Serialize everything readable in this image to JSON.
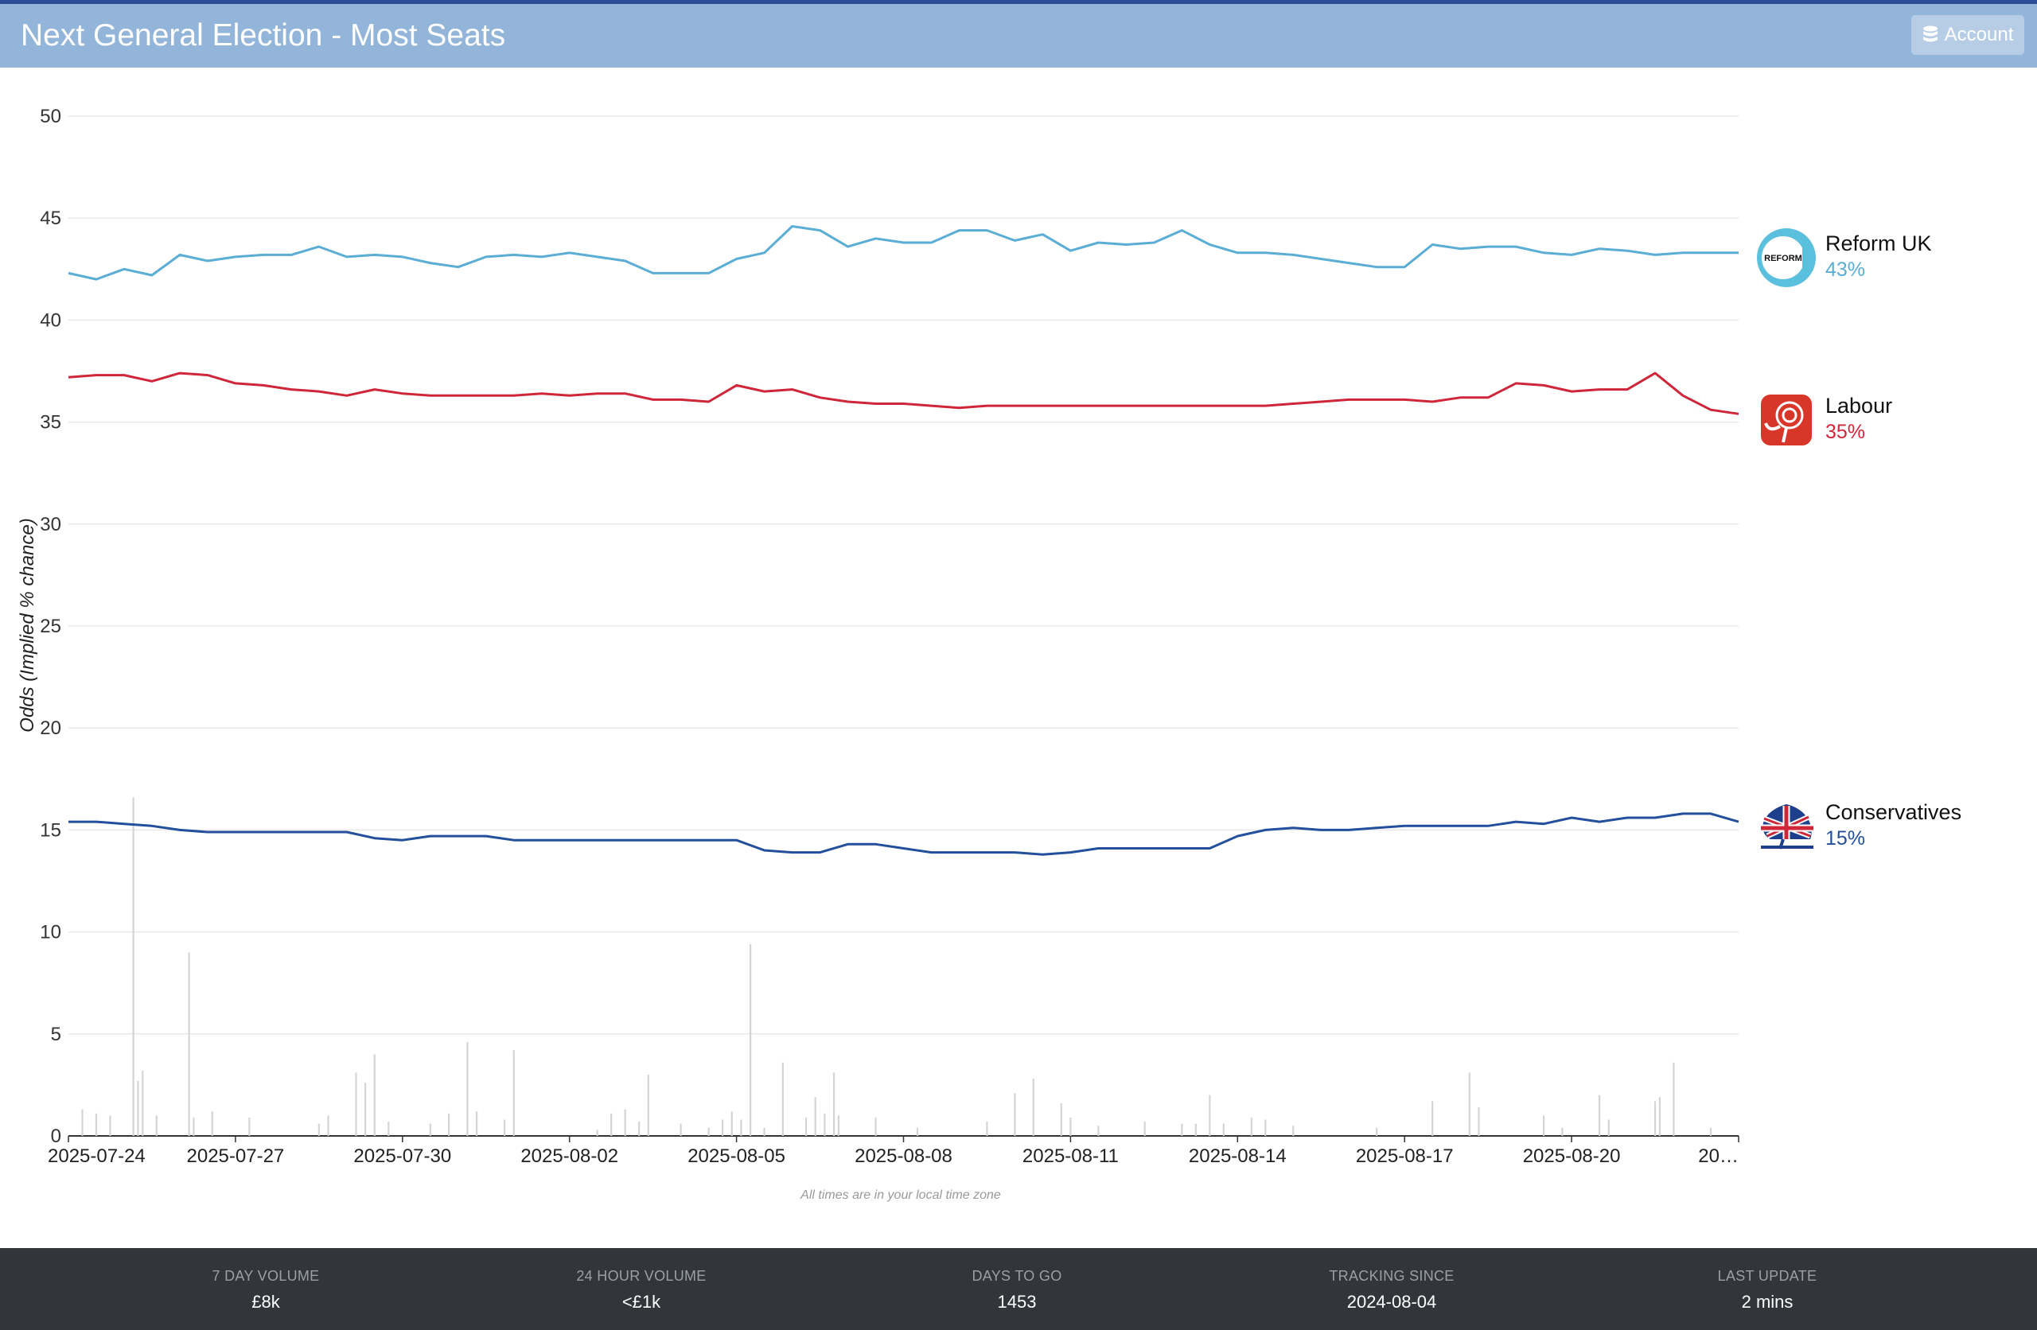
{
  "header": {
    "title": "Next General Election - Most Seats",
    "account_label": "Account",
    "account_icon": "database-icon"
  },
  "colors": {
    "header_bg": "#94b5da",
    "top_strip": "#2c4d99",
    "reform": "#5aadd5",
    "labour": "#d0263a",
    "conservatives": "#234f9c",
    "volume_bars": "#d4d4d4",
    "footer_bg": "#32353a"
  },
  "chart_data": {
    "type": "line",
    "ylabel": "Odds (Implied % chance)",
    "ylim": [
      0,
      50
    ],
    "yticks": [
      0,
      5,
      10,
      15,
      20,
      25,
      30,
      35,
      40,
      45,
      50
    ],
    "xlim": [
      "2025-07-24",
      "2025-08-23"
    ],
    "xtick_labels": [
      "2025-07-24",
      "2025-07-27",
      "2025-07-30",
      "2025-08-02",
      "2025-08-05",
      "2025-08-08",
      "2025-08-11",
      "2025-08-14",
      "2025-08-17",
      "2025-08-20",
      "20…"
    ],
    "grid": true,
    "note": "All times are in your local time zone",
    "series": [
      {
        "name": "Reform UK",
        "color": "#5aadd5",
        "current_label": "43%",
        "logo": "reform-uk-logo",
        "points": [
          [
            "2025-07-24",
            42.3
          ],
          [
            "2025-07-24 12:00",
            42.0
          ],
          [
            "2025-07-25",
            42.5
          ],
          [
            "2025-07-25 12:00",
            42.2
          ],
          [
            "2025-07-26",
            43.2
          ],
          [
            "2025-07-26 12:00",
            42.9
          ],
          [
            "2025-07-27",
            43.1
          ],
          [
            "2025-07-27 12:00",
            43.2
          ],
          [
            "2025-07-28",
            43.2
          ],
          [
            "2025-07-28 12:00",
            43.6
          ],
          [
            "2025-07-29",
            43.1
          ],
          [
            "2025-07-29 12:00",
            43.2
          ],
          [
            "2025-07-30",
            43.1
          ],
          [
            "2025-07-30 12:00",
            42.8
          ],
          [
            "2025-07-31",
            42.6
          ],
          [
            "2025-07-31 12:00",
            43.1
          ],
          [
            "2025-08-01",
            43.2
          ],
          [
            "2025-08-01 12:00",
            43.1
          ],
          [
            "2025-08-02",
            43.3
          ],
          [
            "2025-08-02 12:00",
            43.1
          ],
          [
            "2025-08-03",
            42.9
          ],
          [
            "2025-08-03 12:00",
            42.3
          ],
          [
            "2025-08-04",
            42.3
          ],
          [
            "2025-08-04 12:00",
            42.3
          ],
          [
            "2025-08-05",
            43.0
          ],
          [
            "2025-08-05 12:00",
            43.3
          ],
          [
            "2025-08-06",
            44.6
          ],
          [
            "2025-08-06 12:00",
            44.4
          ],
          [
            "2025-08-07",
            43.6
          ],
          [
            "2025-08-07 12:00",
            44.0
          ],
          [
            "2025-08-08",
            43.8
          ],
          [
            "2025-08-08 12:00",
            43.8
          ],
          [
            "2025-08-09",
            44.4
          ],
          [
            "2025-08-09 12:00",
            44.4
          ],
          [
            "2025-08-10",
            43.9
          ],
          [
            "2025-08-10 12:00",
            44.2
          ],
          [
            "2025-08-11",
            43.4
          ],
          [
            "2025-08-11 12:00",
            43.8
          ],
          [
            "2025-08-12",
            43.7
          ],
          [
            "2025-08-12 12:00",
            43.8
          ],
          [
            "2025-08-13",
            44.4
          ],
          [
            "2025-08-13 12:00",
            43.7
          ],
          [
            "2025-08-14",
            43.3
          ],
          [
            "2025-08-14 12:00",
            43.3
          ],
          [
            "2025-08-15",
            43.2
          ],
          [
            "2025-08-15 12:00",
            43.0
          ],
          [
            "2025-08-16",
            42.8
          ],
          [
            "2025-08-16 12:00",
            42.6
          ],
          [
            "2025-08-17",
            42.6
          ],
          [
            "2025-08-17 12:00",
            43.7
          ],
          [
            "2025-08-18",
            43.5
          ],
          [
            "2025-08-18 12:00",
            43.6
          ],
          [
            "2025-08-19",
            43.6
          ],
          [
            "2025-08-19 12:00",
            43.3
          ],
          [
            "2025-08-20",
            43.2
          ],
          [
            "2025-08-20 12:00",
            43.5
          ],
          [
            "2025-08-21",
            43.4
          ],
          [
            "2025-08-21 12:00",
            43.2
          ],
          [
            "2025-08-22",
            43.3
          ],
          [
            "2025-08-22 12:00",
            43.3
          ],
          [
            "2025-08-23",
            43.3
          ]
        ]
      },
      {
        "name": "Labour",
        "color": "#d0263a",
        "current_label": "35%",
        "logo": "labour-rose-logo",
        "points": [
          [
            "2025-07-24",
            37.2
          ],
          [
            "2025-07-24 12:00",
            37.3
          ],
          [
            "2025-07-25",
            37.3
          ],
          [
            "2025-07-25 12:00",
            37.0
          ],
          [
            "2025-07-26",
            37.4
          ],
          [
            "2025-07-26 12:00",
            37.3
          ],
          [
            "2025-07-27",
            36.9
          ],
          [
            "2025-07-27 12:00",
            36.8
          ],
          [
            "2025-07-28",
            36.6
          ],
          [
            "2025-07-28 12:00",
            36.5
          ],
          [
            "2025-07-29",
            36.3
          ],
          [
            "2025-07-29 12:00",
            36.6
          ],
          [
            "2025-07-30",
            36.4
          ],
          [
            "2025-07-30 12:00",
            36.3
          ],
          [
            "2025-07-31",
            36.3
          ],
          [
            "2025-07-31 12:00",
            36.3
          ],
          [
            "2025-08-01",
            36.3
          ],
          [
            "2025-08-01 12:00",
            36.4
          ],
          [
            "2025-08-02",
            36.3
          ],
          [
            "2025-08-02 12:00",
            36.4
          ],
          [
            "2025-08-03",
            36.4
          ],
          [
            "2025-08-03 12:00",
            36.1
          ],
          [
            "2025-08-04",
            36.1
          ],
          [
            "2025-08-04 12:00",
            36.0
          ],
          [
            "2025-08-05",
            36.8
          ],
          [
            "2025-08-05 12:00",
            36.5
          ],
          [
            "2025-08-06",
            36.6
          ],
          [
            "2025-08-06 12:00",
            36.2
          ],
          [
            "2025-08-07",
            36.0
          ],
          [
            "2025-08-07 12:00",
            35.9
          ],
          [
            "2025-08-08",
            35.9
          ],
          [
            "2025-08-08 12:00",
            35.8
          ],
          [
            "2025-08-09",
            35.7
          ],
          [
            "2025-08-09 12:00",
            35.8
          ],
          [
            "2025-08-10",
            35.8
          ],
          [
            "2025-08-10 12:00",
            35.8
          ],
          [
            "2025-08-11",
            35.8
          ],
          [
            "2025-08-11 12:00",
            35.8
          ],
          [
            "2025-08-12",
            35.8
          ],
          [
            "2025-08-12 12:00",
            35.8
          ],
          [
            "2025-08-13",
            35.8
          ],
          [
            "2025-08-13 12:00",
            35.8
          ],
          [
            "2025-08-14",
            35.8
          ],
          [
            "2025-08-14 12:00",
            35.8
          ],
          [
            "2025-08-15",
            35.9
          ],
          [
            "2025-08-15 12:00",
            36.0
          ],
          [
            "2025-08-16",
            36.1
          ],
          [
            "2025-08-16 12:00",
            36.1
          ],
          [
            "2025-08-17",
            36.1
          ],
          [
            "2025-08-17 12:00",
            36.0
          ],
          [
            "2025-08-18",
            36.2
          ],
          [
            "2025-08-18 12:00",
            36.2
          ],
          [
            "2025-08-19",
            36.9
          ],
          [
            "2025-08-19 12:00",
            36.8
          ],
          [
            "2025-08-20",
            36.5
          ],
          [
            "2025-08-20 12:00",
            36.6
          ],
          [
            "2025-08-21",
            36.6
          ],
          [
            "2025-08-21 12:00",
            37.4
          ],
          [
            "2025-08-22",
            36.3
          ],
          [
            "2025-08-22 12:00",
            35.6
          ],
          [
            "2025-08-23",
            35.4
          ]
        ]
      },
      {
        "name": "Conservatives",
        "color": "#234f9c",
        "current_label": "15%",
        "logo": "conservatives-tree-logo",
        "points": [
          [
            "2025-07-24",
            15.4
          ],
          [
            "2025-07-24 12:00",
            15.4
          ],
          [
            "2025-07-25",
            15.3
          ],
          [
            "2025-07-25 12:00",
            15.2
          ],
          [
            "2025-07-26",
            15.0
          ],
          [
            "2025-07-26 12:00",
            14.9
          ],
          [
            "2025-07-27",
            14.9
          ],
          [
            "2025-07-27 12:00",
            14.9
          ],
          [
            "2025-07-28",
            14.9
          ],
          [
            "2025-07-28 12:00",
            14.9
          ],
          [
            "2025-07-29",
            14.9
          ],
          [
            "2025-07-29 12:00",
            14.6
          ],
          [
            "2025-07-30",
            14.5
          ],
          [
            "2025-07-30 12:00",
            14.7
          ],
          [
            "2025-07-31",
            14.7
          ],
          [
            "2025-07-31 12:00",
            14.7
          ],
          [
            "2025-08-01",
            14.5
          ],
          [
            "2025-08-01 12:00",
            14.5
          ],
          [
            "2025-08-02",
            14.5
          ],
          [
            "2025-08-02 12:00",
            14.5
          ],
          [
            "2025-08-03",
            14.5
          ],
          [
            "2025-08-03 12:00",
            14.5
          ],
          [
            "2025-08-04",
            14.5
          ],
          [
            "2025-08-04 12:00",
            14.5
          ],
          [
            "2025-08-05",
            14.5
          ],
          [
            "2025-08-05 12:00",
            14.0
          ],
          [
            "2025-08-06",
            13.9
          ],
          [
            "2025-08-06 12:00",
            13.9
          ],
          [
            "2025-08-07",
            14.3
          ],
          [
            "2025-08-07 12:00",
            14.3
          ],
          [
            "2025-08-08",
            14.1
          ],
          [
            "2025-08-08 12:00",
            13.9
          ],
          [
            "2025-08-09",
            13.9
          ],
          [
            "2025-08-09 12:00",
            13.9
          ],
          [
            "2025-08-10",
            13.9
          ],
          [
            "2025-08-10 12:00",
            13.8
          ],
          [
            "2025-08-11",
            13.9
          ],
          [
            "2025-08-11 12:00",
            14.1
          ],
          [
            "2025-08-12",
            14.1
          ],
          [
            "2025-08-12 12:00",
            14.1
          ],
          [
            "2025-08-13",
            14.1
          ],
          [
            "2025-08-13 12:00",
            14.1
          ],
          [
            "2025-08-14",
            14.7
          ],
          [
            "2025-08-14 12:00",
            15.0
          ],
          [
            "2025-08-15",
            15.1
          ],
          [
            "2025-08-15 12:00",
            15.0
          ],
          [
            "2025-08-16",
            15.0
          ],
          [
            "2025-08-16 12:00",
            15.1
          ],
          [
            "2025-08-17",
            15.2
          ],
          [
            "2025-08-17 12:00",
            15.2
          ],
          [
            "2025-08-18",
            15.2
          ],
          [
            "2025-08-18 12:00",
            15.2
          ],
          [
            "2025-08-19",
            15.4
          ],
          [
            "2025-08-19 12:00",
            15.3
          ],
          [
            "2025-08-20",
            15.6
          ],
          [
            "2025-08-20 12:00",
            15.4
          ],
          [
            "2025-08-21",
            15.6
          ],
          [
            "2025-08-21 12:00",
            15.6
          ],
          [
            "2025-08-22",
            15.8
          ],
          [
            "2025-08-22 12:00",
            15.8
          ],
          [
            "2025-08-23",
            15.4
          ]
        ]
      }
    ],
    "volume_bars": [
      [
        "2025-07-24 06:00",
        1.3
      ],
      [
        "2025-07-24 12:00",
        1.1
      ],
      [
        "2025-07-24 18:00",
        1.0
      ],
      [
        "2025-07-25 04:00",
        16.6
      ],
      [
        "2025-07-25 06:00",
        2.7
      ],
      [
        "2025-07-25 08:00",
        3.2
      ],
      [
        "2025-07-25 14:00",
        1.0
      ],
      [
        "2025-07-26 04:00",
        9.0
      ],
      [
        "2025-07-26 06:00",
        0.9
      ],
      [
        "2025-07-26 14:00",
        1.2
      ],
      [
        "2025-07-27 06:00",
        0.9
      ],
      [
        "2025-07-28 12:00",
        0.6
      ],
      [
        "2025-07-28 16:00",
        1.0
      ],
      [
        "2025-07-29 04:00",
        3.1
      ],
      [
        "2025-07-29 08:00",
        2.6
      ],
      [
        "2025-07-29 12:00",
        4.0
      ],
      [
        "2025-07-29 18:00",
        0.7
      ],
      [
        "2025-07-30 12:00",
        0.6
      ],
      [
        "2025-07-30 20:00",
        1.1
      ],
      [
        "2025-07-31 04:00",
        4.6
      ],
      [
        "2025-07-31 08:00",
        1.2
      ],
      [
        "2025-07-31 20:00",
        0.8
      ],
      [
        "2025-08-01 00:00",
        4.2
      ],
      [
        "2025-08-02 12:00",
        0.3
      ],
      [
        "2025-08-02 18:00",
        1.1
      ],
      [
        "2025-08-03 00:00",
        1.3
      ],
      [
        "2025-08-03 06:00",
        0.7
      ],
      [
        "2025-08-03 10:00",
        3.0
      ],
      [
        "2025-08-04 00:00",
        0.6
      ],
      [
        "2025-08-04 12:00",
        0.4
      ],
      [
        "2025-08-04 18:00",
        0.8
      ],
      [
        "2025-08-04 22:00",
        1.2
      ],
      [
        "2025-08-05 02:00",
        0.8
      ],
      [
        "2025-08-05 06:00",
        9.4
      ],
      [
        "2025-08-05 12:00",
        0.4
      ],
      [
        "2025-08-05 20:00",
        3.6
      ],
      [
        "2025-08-06 06:00",
        0.9
      ],
      [
        "2025-08-06 10:00",
        1.9
      ],
      [
        "2025-08-06 14:00",
        1.1
      ],
      [
        "2025-08-06 18:00",
        3.1
      ],
      [
        "2025-08-06 20:00",
        1.0
      ],
      [
        "2025-08-07 12:00",
        0.9
      ],
      [
        "2025-08-08 06:00",
        0.4
      ],
      [
        "2025-08-09 12:00",
        0.7
      ],
      [
        "2025-08-10 00:00",
        2.1
      ],
      [
        "2025-08-10 08:00",
        2.8
      ],
      [
        "2025-08-10 20:00",
        1.6
      ],
      [
        "2025-08-11 00:00",
        0.9
      ],
      [
        "2025-08-11 12:00",
        0.5
      ],
      [
        "2025-08-12 08:00",
        0.7
      ],
      [
        "2025-08-13 00:00",
        0.6
      ],
      [
        "2025-08-13 06:00",
        0.6
      ],
      [
        "2025-08-13 12:00",
        2.0
      ],
      [
        "2025-08-13 18:00",
        0.6
      ],
      [
        "2025-08-14 06:00",
        0.9
      ],
      [
        "2025-08-14 12:00",
        0.8
      ],
      [
        "2025-08-15 00:00",
        0.5
      ],
      [
        "2025-08-16 12:00",
        0.4
      ],
      [
        "2025-08-17 12:00",
        1.7
      ],
      [
        "2025-08-18 04:00",
        3.1
      ],
      [
        "2025-08-18 08:00",
        1.4
      ],
      [
        "2025-08-19 12:00",
        1.0
      ],
      [
        "2025-08-19 20:00",
        0.4
      ],
      [
        "2025-08-20 12:00",
        2.0
      ],
      [
        "2025-08-20 16:00",
        0.8
      ],
      [
        "2025-08-21 12:00",
        1.7
      ],
      [
        "2025-08-21 14:00",
        1.9
      ],
      [
        "2025-08-21 20:00",
        3.6
      ],
      [
        "2025-08-22 12:00",
        0.4
      ]
    ]
  },
  "footer": {
    "stats": [
      {
        "label": "7 DAY VOLUME",
        "value": "£8k"
      },
      {
        "label": "24 HOUR VOLUME",
        "value": "<£1k"
      },
      {
        "label": "DAYS TO GO",
        "value": "1453"
      },
      {
        "label": "TRACKING SINCE",
        "value": "2024-08-04"
      },
      {
        "label": "LAST UPDATE",
        "value": "2 mins"
      }
    ]
  }
}
